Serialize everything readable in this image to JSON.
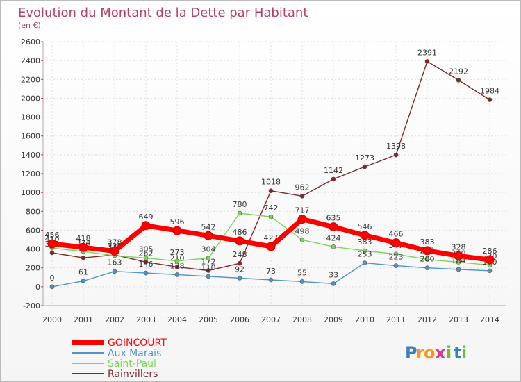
{
  "chart_data": {
    "type": "line",
    "title": "Evolution du Montant de la Dette par Habitant",
    "subtitle": "(en €)",
    "xlabel": "",
    "ylabel": "",
    "ylim": [
      -200,
      2600
    ],
    "yticks": [
      -200,
      0,
      200,
      400,
      600,
      800,
      1000,
      1200,
      1400,
      1600,
      1800,
      2000,
      2200,
      2400,
      2600
    ],
    "grid": true,
    "legend": "bottom-left",
    "categories": [
      "2000",
      "2001",
      "2002",
      "2003",
      "2004",
      "2005",
      "2006",
      "2007",
      "2008",
      "2009",
      "2010",
      "2011",
      "2012",
      "2013",
      "2014"
    ],
    "series": [
      {
        "name": "Rainvillers",
        "color": "#7a2a2a",
        "values": [
          360,
          307,
          338,
          262,
          210,
          172,
          248,
          1018,
          962,
          1142,
          1273,
          1398,
          2391,
          2192,
          1984
        ],
        "labels": [
          "360",
          "307",
          "338",
          "262",
          "210",
          "172",
          "248",
          "1018",
          "962",
          "1142",
          "1273",
          "1398",
          "2391",
          "2192",
          "1984"
        ]
      },
      {
        "name": "Saint-Paul",
        "color": "#7dd35a",
        "values": [
          410,
          374,
          330,
          305,
          273,
          304,
          780,
          742,
          498,
          424,
          383,
          347,
          290,
          260,
          230
        ],
        "labels": [
          "410",
          "374",
          "330",
          "305",
          "273",
          "304",
          "780",
          "742",
          "498",
          "424",
          "383",
          "347",
          "290",
          "260",
          "230"
        ]
      },
      {
        "name": "Aux Marais",
        "color": "#4f93c7",
        "values": [
          0,
          61,
          163,
          146,
          128,
          110,
          92,
          73,
          55,
          33,
          253,
          223,
          200,
          184,
          170
        ],
        "labels": [
          "0",
          "61",
          "163",
          "146",
          "128",
          "110",
          "92",
          "73",
          "55",
          "33",
          "253",
          "223",
          "200",
          "184",
          "170"
        ]
      },
      {
        "name": "GOINCOURT",
        "color": "#ff0000",
        "values": [
          456,
          418,
          378,
          649,
          596,
          542,
          486,
          427,
          717,
          635,
          546,
          466,
          383,
          328,
          286
        ],
        "labels": [
          "456",
          "418",
          "378",
          "649",
          "596",
          "542",
          "486",
          "427",
          "717",
          "635",
          "546",
          "466",
          "383",
          "328",
          "286"
        ]
      }
    ]
  },
  "legend": {
    "items": [
      {
        "label": "GOINCOURT",
        "color": "#ff0000"
      },
      {
        "label": "Aux Marais",
        "color": "#4f93c7"
      },
      {
        "label": "Saint-Paul",
        "color": "#7dd35a"
      },
      {
        "label": "Rainvillers",
        "color": "#7a2a2a"
      }
    ]
  },
  "brand": {
    "letters": [
      "P",
      "r",
      "o",
      "x",
      "i",
      "t",
      "i"
    ],
    "colors": [
      "#3a7fc1",
      "#f39a1e",
      "#f39a1e",
      "#d83a8a",
      "#7ab83a",
      "#3a7fc1",
      "#7ab83a"
    ]
  }
}
